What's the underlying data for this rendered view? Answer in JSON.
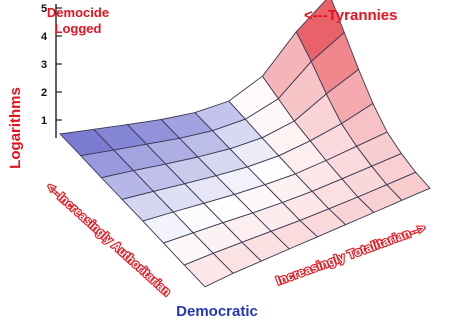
{
  "chart_data": {
    "type": "surface",
    "title_line1": "Democide",
    "title_line2": "Logged",
    "zlabel": "Logarithms",
    "z_ticks": [
      "1",
      "2",
      "3",
      "4",
      "5"
    ],
    "zlim": [
      1,
      5
    ],
    "annotation_top": "<---Tyrannies",
    "annotation_bottom": "Democratic",
    "left_axis_label": "<--Increasingly Authoritarian",
    "right_axis_label": "Increasingly Totalitarian-->",
    "grid": true,
    "colors": {
      "title": "#e8101e",
      "bottom_label": "#2238b8",
      "axis_label": "#ffffff",
      "axis_label_stroke": "#e8141e",
      "surface_low": "#1414b0",
      "surface_mid": "#ffffff",
      "surface_high": "#e0141e"
    },
    "z_values": [
      [
        0.4,
        0.5,
        0.55,
        0.6,
        0.65,
        0.7,
        0.75,
        0.8,
        0.85
      ],
      [
        0.42,
        0.5,
        0.55,
        0.6,
        0.65,
        0.72,
        0.8,
        0.9,
        1.0
      ],
      [
        0.45,
        0.52,
        0.58,
        0.63,
        0.7,
        0.8,
        0.95,
        1.1,
        1.25
      ],
      [
        0.48,
        0.55,
        0.6,
        0.66,
        0.75,
        0.88,
        1.1,
        1.35,
        1.6
      ],
      [
        0.5,
        0.57,
        0.63,
        0.7,
        0.8,
        0.98,
        1.3,
        1.7,
        2.2
      ],
      [
        0.52,
        0.6,
        0.66,
        0.74,
        0.86,
        1.08,
        1.5,
        2.3,
        3.0
      ],
      [
        0.55,
        0.62,
        0.7,
        0.78,
        0.92,
        1.2,
        1.8,
        3.0,
        3.9
      ],
      [
        0.57,
        0.65,
        0.73,
        0.82,
        0.98,
        1.3,
        2.1,
        3.6,
        4.8
      ]
    ]
  }
}
